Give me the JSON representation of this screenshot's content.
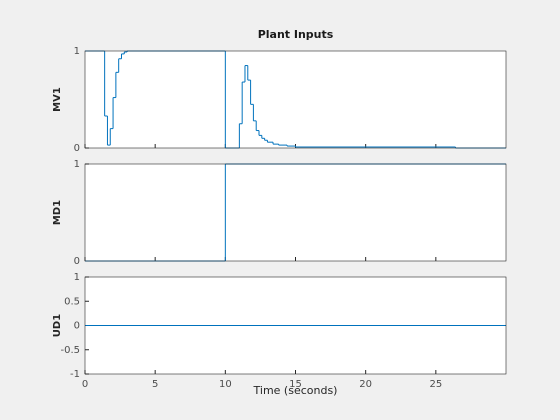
{
  "chart_data": [
    {
      "type": "line",
      "drawstyle": "steps-post",
      "title": "Plant Inputs",
      "ylabel": "MV1",
      "xlim": [
        0,
        30
      ],
      "xticks": [
        0,
        5,
        10,
        15,
        20,
        25
      ],
      "show_xticklabels": false,
      "ylim": [
        0,
        1
      ],
      "yticks": [
        0,
        1
      ],
      "series": [
        {
          "name": "MV1",
          "color": "#0072bd",
          "x": [
            0,
            1.4,
            1.6,
            1.8,
            2.0,
            2.2,
            2.4,
            2.6,
            2.8,
            3.0,
            10,
            11,
            11.2,
            11.4,
            11.6,
            11.8,
            12,
            12.2,
            12.4,
            12.6,
            12.8,
            13,
            13.4,
            13.8,
            14.4,
            15,
            26.4
          ],
          "values": [
            1,
            0.33,
            0.03,
            0.2,
            0.52,
            0.78,
            0.92,
            0.97,
            0.99,
            1,
            0,
            0.25,
            0.68,
            0.85,
            0.7,
            0.45,
            0.28,
            0.18,
            0.13,
            0.1,
            0.08,
            0.06,
            0.04,
            0.03,
            0.02,
            0.01,
            0
          ]
        }
      ]
    },
    {
      "type": "line",
      "drawstyle": "steps-post",
      "ylabel": "MD1",
      "xlim": [
        0,
        30
      ],
      "xticks": [
        0,
        5,
        10,
        15,
        20,
        25
      ],
      "show_xticklabels": false,
      "ylim": [
        0,
        1
      ],
      "yticks": [
        0,
        1
      ],
      "series": [
        {
          "name": "MD1",
          "color": "#0072bd",
          "x": [
            0,
            10
          ],
          "values": [
            0,
            1
          ]
        }
      ]
    },
    {
      "type": "line",
      "drawstyle": "steps-post",
      "ylabel": "UD1",
      "xlabel": "Time (seconds)",
      "xlim": [
        0,
        30
      ],
      "xticks": [
        0,
        5,
        10,
        15,
        20,
        25
      ],
      "show_xticklabels": true,
      "ylim": [
        -1,
        1
      ],
      "yticks": [
        -1,
        -0.5,
        0,
        0.5,
        1
      ],
      "series": [
        {
          "name": "UD1",
          "color": "#0072bd",
          "x": [
            0
          ],
          "values": [
            0
          ]
        }
      ]
    }
  ]
}
